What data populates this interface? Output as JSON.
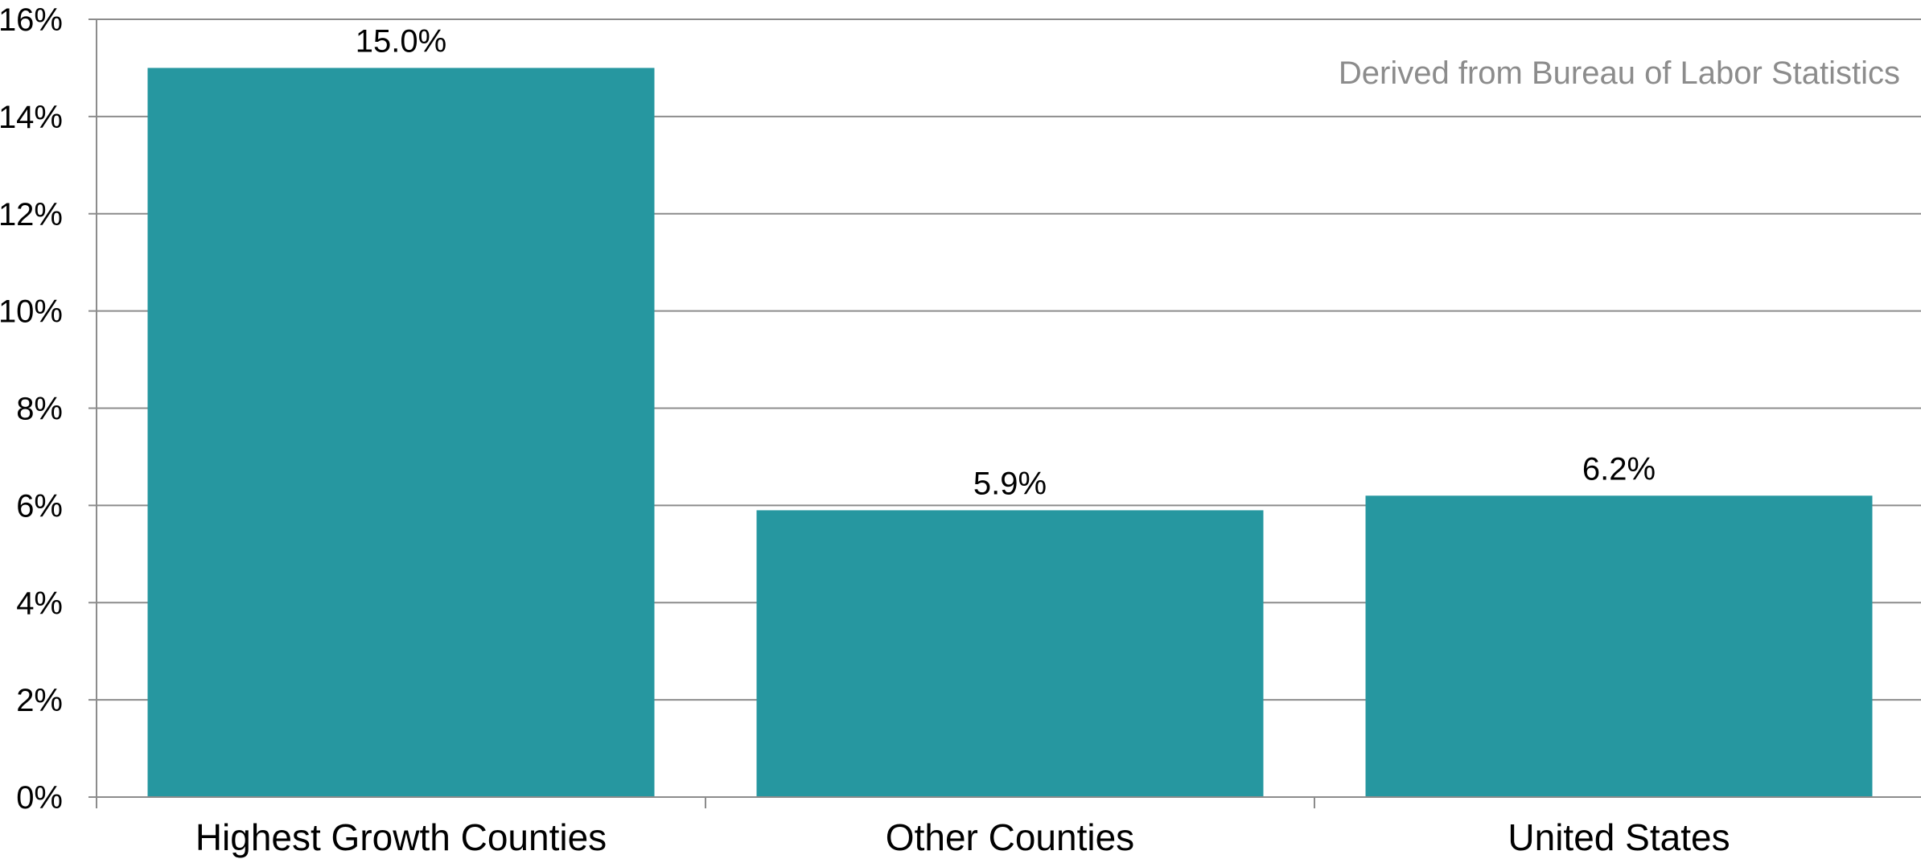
{
  "chart_data": {
    "type": "bar",
    "categories": [
      "Highest Growth Counties",
      "Other Counties",
      "United States"
    ],
    "values": [
      15.0,
      5.9,
      6.2
    ],
    "data_labels": [
      "15.0%",
      "5.9%",
      "6.2%"
    ],
    "ylim": [
      0,
      16
    ],
    "yticks": [
      0,
      2,
      4,
      6,
      8,
      10,
      12,
      14,
      16
    ],
    "ytick_labels": [
      "0%",
      "2%",
      "4%",
      "6%",
      "8%",
      "10%",
      "12%",
      "14%",
      "16%"
    ],
    "annotation": "Derived from Bureau of Labor Statistics",
    "grid": true,
    "bar_color": "#2697a0",
    "grid_color": "#8c8c8c",
    "annotation_color": "#8c8c8c"
  }
}
